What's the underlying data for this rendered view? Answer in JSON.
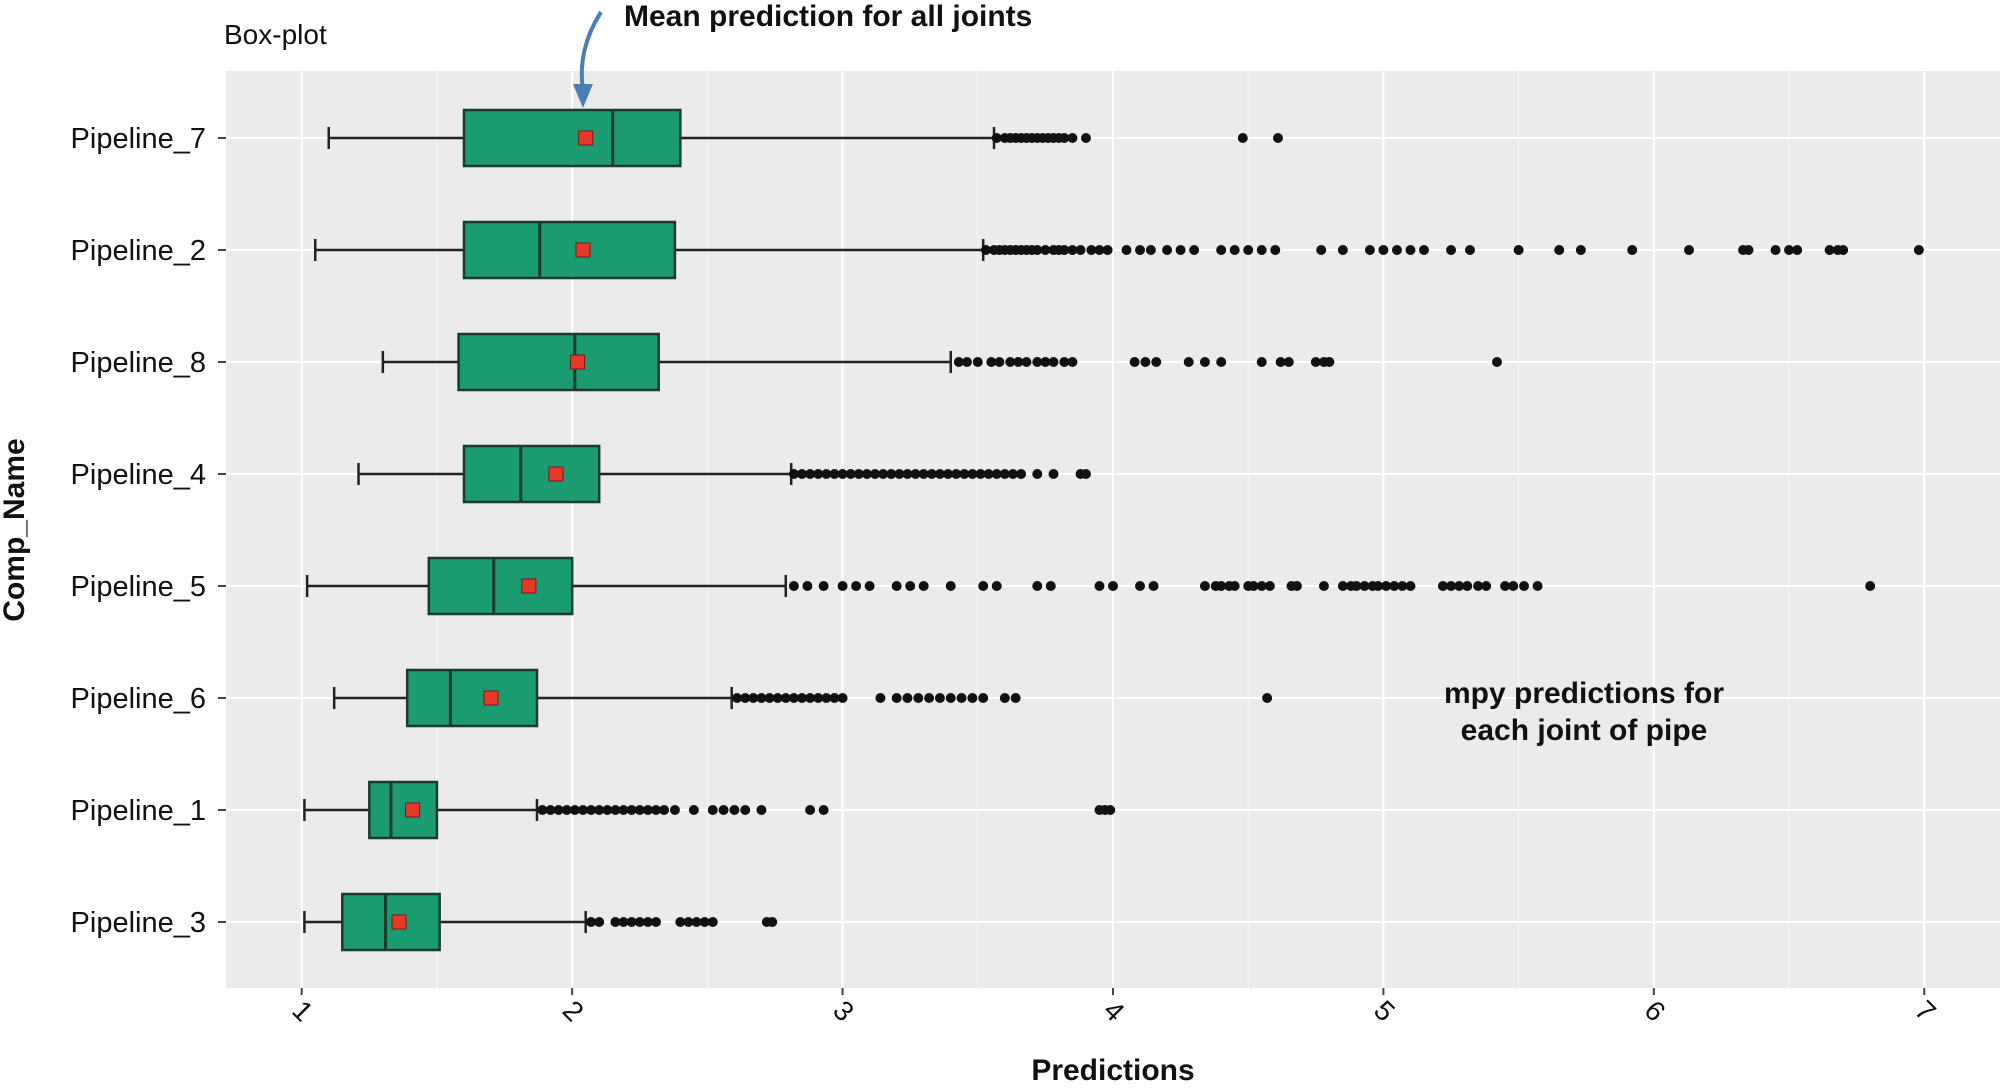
{
  "chart_data": {
    "type": "boxplot",
    "subtitle": "Box-plot",
    "xlabel": "Predictions",
    "ylabel": "Comp_Name",
    "xlim": [
      0.72,
      7.28
    ],
    "xticks": [
      1,
      2,
      3,
      4,
      5,
      6,
      7
    ],
    "grid": true,
    "annotations": {
      "mean_label": "Mean prediction for all joints",
      "mean_arrow_x": 2.04,
      "note_line1": "mpy predictions for",
      "note_line2": "each joint of pipe"
    },
    "colors": {
      "box": "#1a9b70",
      "box_edge": "#1b3a2c",
      "mean": "#e8382c",
      "panel": "#ebebeb",
      "grid": "#ffffff",
      "arrow": "#4a7fb5",
      "point": "#111111"
    },
    "categories": [
      "Pipeline_7",
      "Pipeline_2",
      "Pipeline_8",
      "Pipeline_4",
      "Pipeline_5",
      "Pipeline_6",
      "Pipeline_1",
      "Pipeline_3"
    ],
    "series": [
      {
        "name": "Pipeline_7",
        "whisker_low": 1.1,
        "q1": 1.6,
        "median": 2.15,
        "q3": 2.4,
        "whisker_high": 3.56,
        "mean": 2.05,
        "outliers": [
          3.57,
          3.6,
          3.62,
          3.64,
          3.66,
          3.68,
          3.7,
          3.72,
          3.74,
          3.76,
          3.78,
          3.8,
          3.82,
          3.85,
          3.9,
          4.48,
          4.61
        ]
      },
      {
        "name": "Pipeline_2",
        "whisker_low": 1.05,
        "q1": 1.6,
        "median": 1.88,
        "q3": 2.38,
        "whisker_high": 3.52,
        "mean": 2.04,
        "outliers": [
          3.53,
          3.56,
          3.58,
          3.6,
          3.62,
          3.64,
          3.66,
          3.68,
          3.7,
          3.72,
          3.75,
          3.78,
          3.8,
          3.82,
          3.85,
          3.88,
          3.92,
          3.95,
          3.98,
          4.05,
          4.1,
          4.14,
          4.2,
          4.25,
          4.3,
          4.4,
          4.45,
          4.5,
          4.55,
          4.6,
          4.77,
          4.85,
          4.95,
          5.0,
          5.05,
          5.1,
          5.15,
          5.25,
          5.32,
          5.5,
          5.65,
          5.73,
          5.92,
          6.13,
          6.33,
          6.35,
          6.45,
          6.5,
          6.53,
          6.65,
          6.68,
          6.7,
          6.98
        ]
      },
      {
        "name": "Pipeline_8",
        "whisker_low": 1.3,
        "q1": 1.58,
        "median": 2.01,
        "q3": 2.32,
        "whisker_high": 3.4,
        "mean": 2.02,
        "outliers": [
          3.43,
          3.46,
          3.5,
          3.55,
          3.58,
          3.62,
          3.65,
          3.68,
          3.72,
          3.75,
          3.78,
          3.82,
          3.85,
          4.08,
          4.12,
          4.16,
          4.28,
          4.34,
          4.4,
          4.55,
          4.62,
          4.65,
          4.75,
          4.78,
          4.8,
          5.42
        ]
      },
      {
        "name": "Pipeline_4",
        "whisker_low": 1.21,
        "q1": 1.6,
        "median": 1.81,
        "q3": 2.1,
        "whisker_high": 2.81,
        "mean": 1.94,
        "outliers": [
          2.82,
          2.85,
          2.88,
          2.91,
          2.94,
          2.97,
          3.0,
          3.03,
          3.06,
          3.09,
          3.12,
          3.15,
          3.18,
          3.21,
          3.24,
          3.27,
          3.3,
          3.33,
          3.36,
          3.39,
          3.42,
          3.45,
          3.48,
          3.51,
          3.54,
          3.57,
          3.6,
          3.63,
          3.66,
          3.72,
          3.78,
          3.88,
          3.9
        ]
      },
      {
        "name": "Pipeline_5",
        "whisker_low": 1.02,
        "q1": 1.47,
        "median": 1.71,
        "q3": 2.0,
        "whisker_high": 2.79,
        "mean": 1.84,
        "outliers": [
          2.82,
          2.87,
          2.93,
          3.0,
          3.05,
          3.1,
          3.2,
          3.25,
          3.3,
          3.4,
          3.52,
          3.57,
          3.72,
          3.77,
          3.95,
          4.0,
          4.1,
          4.15,
          4.34,
          4.38,
          4.4,
          4.43,
          4.45,
          4.5,
          4.52,
          4.55,
          4.58,
          4.66,
          4.68,
          4.78,
          4.85,
          4.88,
          4.9,
          4.93,
          4.96,
          4.98,
          5.01,
          5.04,
          5.07,
          5.1,
          5.22,
          5.25,
          5.28,
          5.31,
          5.35,
          5.38,
          5.45,
          5.48,
          5.52,
          5.57,
          6.8
        ]
      },
      {
        "name": "Pipeline_6",
        "whisker_low": 1.12,
        "q1": 1.39,
        "median": 1.55,
        "q3": 1.87,
        "whisker_high": 2.59,
        "mean": 1.7,
        "outliers": [
          2.61,
          2.64,
          2.67,
          2.7,
          2.73,
          2.76,
          2.79,
          2.82,
          2.85,
          2.88,
          2.91,
          2.94,
          2.97,
          3.0,
          3.14,
          3.2,
          3.24,
          3.28,
          3.32,
          3.36,
          3.4,
          3.44,
          3.48,
          3.52,
          3.6,
          3.64,
          4.57
        ]
      },
      {
        "name": "Pipeline_1",
        "whisker_low": 1.01,
        "q1": 1.25,
        "median": 1.33,
        "q3": 1.5,
        "whisker_high": 1.87,
        "mean": 1.41,
        "outliers": [
          1.89,
          1.92,
          1.95,
          1.98,
          2.01,
          2.04,
          2.07,
          2.1,
          2.13,
          2.16,
          2.19,
          2.22,
          2.25,
          2.28,
          2.31,
          2.34,
          2.38,
          2.45,
          2.52,
          2.56,
          2.6,
          2.64,
          2.7,
          2.88,
          2.93,
          3.95,
          3.97,
          3.99
        ]
      },
      {
        "name": "Pipeline_3",
        "whisker_low": 1.01,
        "q1": 1.15,
        "median": 1.31,
        "q3": 1.51,
        "whisker_high": 2.05,
        "mean": 1.36,
        "outliers": [
          2.07,
          2.1,
          2.16,
          2.19,
          2.22,
          2.25,
          2.28,
          2.31,
          2.4,
          2.43,
          2.46,
          2.49,
          2.52,
          2.72,
          2.74
        ]
      }
    ]
  }
}
